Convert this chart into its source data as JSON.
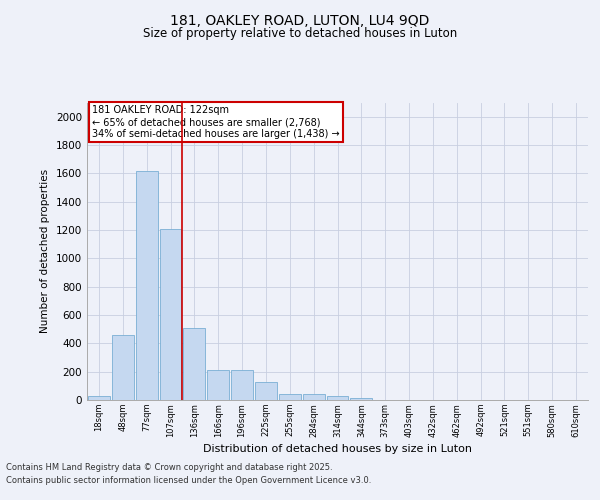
{
  "title1": "181, OAKLEY ROAD, LUTON, LU4 9QD",
  "title2": "Size of property relative to detached houses in Luton",
  "xlabel": "Distribution of detached houses by size in Luton",
  "ylabel": "Number of detached properties",
  "categories": [
    "18sqm",
    "48sqm",
    "77sqm",
    "107sqm",
    "136sqm",
    "166sqm",
    "196sqm",
    "225sqm",
    "255sqm",
    "284sqm",
    "314sqm",
    "344sqm",
    "373sqm",
    "403sqm",
    "432sqm",
    "462sqm",
    "492sqm",
    "521sqm",
    "551sqm",
    "580sqm",
    "610sqm"
  ],
  "values": [
    30,
    460,
    1620,
    1210,
    510,
    215,
    215,
    130,
    45,
    45,
    25,
    15,
    0,
    0,
    0,
    0,
    0,
    0,
    0,
    0,
    0
  ],
  "bar_color": "#c5d8f0",
  "bar_edge_color": "#7aafd4",
  "vline_x_index": 3.5,
  "vline_color": "#cc0000",
  "annotation_text": "181 OAKLEY ROAD: 122sqm\n← 65% of detached houses are smaller (2,768)\n34% of semi-detached houses are larger (1,438) →",
  "annotation_box_color": "white",
  "annotation_box_edge": "#cc0000",
  "ylim": [
    0,
    2100
  ],
  "yticks": [
    0,
    200,
    400,
    600,
    800,
    1000,
    1200,
    1400,
    1600,
    1800,
    2000
  ],
  "footer1": "Contains HM Land Registry data © Crown copyright and database right 2025.",
  "footer2": "Contains public sector information licensed under the Open Government Licence v3.0.",
  "bg_color": "#eef1f9",
  "plot_bg_color": "#eef1f9",
  "grid_color": "#c8cfe0",
  "spine_color": "#aaaaaa"
}
